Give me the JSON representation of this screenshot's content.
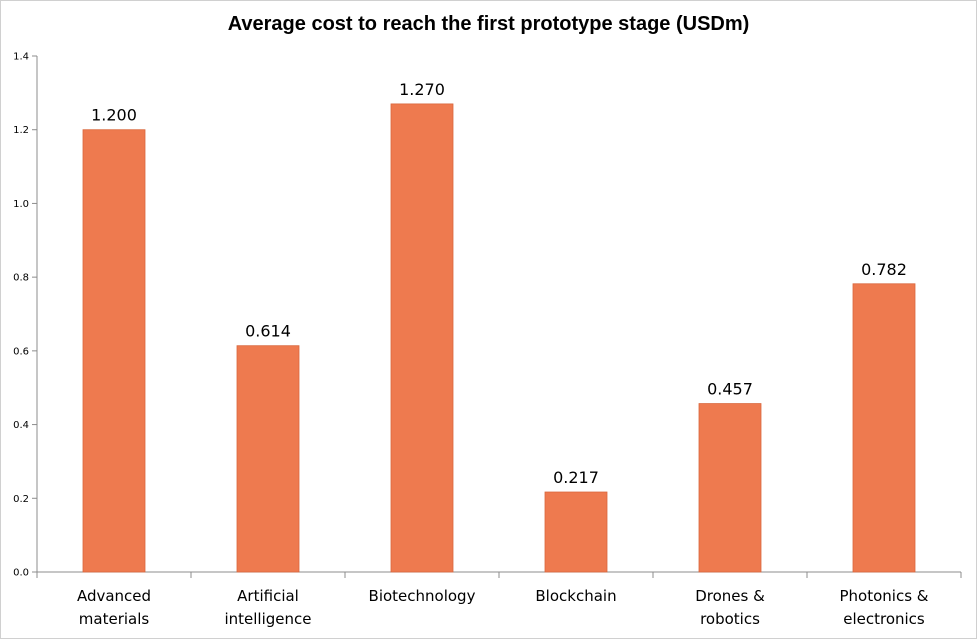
{
  "chart_data": {
    "type": "bar",
    "title": "Average cost to reach the first prototype stage (USDm)",
    "xlabel": "",
    "ylabel": "",
    "ylim": [
      0,
      1.4
    ],
    "yticks": [
      "0.0",
      "0.2",
      "0.4",
      "0.6",
      "0.8",
      "1.0",
      "1.2",
      "1.4"
    ],
    "categories": [
      [
        "Advanced",
        "materials"
      ],
      [
        "Artificial",
        "intelligence"
      ],
      [
        "Biotechnology"
      ],
      [
        "Blockchain"
      ],
      [
        "Drones &",
        "robotics"
      ],
      [
        "Photonics &",
        "electronics"
      ]
    ],
    "values": [
      1.2,
      0.614,
      1.27,
      0.217,
      0.457,
      0.782
    ],
    "data_labels": [
      "1.200",
      "0.614",
      "1.270",
      "0.217",
      "0.457",
      "0.782"
    ],
    "grid": false,
    "legend": "none",
    "bar_color": "#ee7a4f"
  }
}
